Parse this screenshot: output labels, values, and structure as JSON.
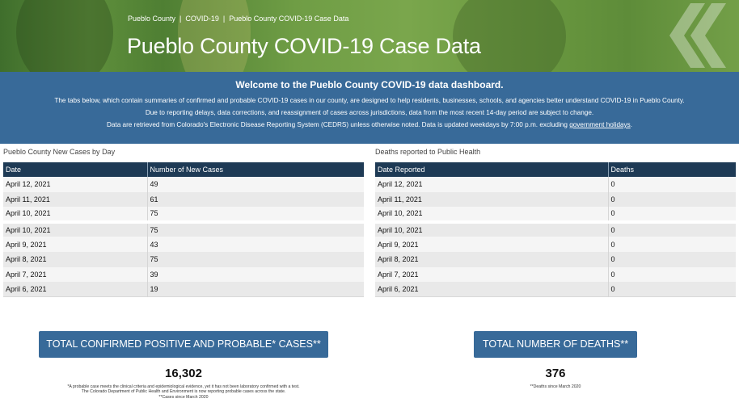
{
  "breadcrumb": [
    "Pueblo County",
    "COVID-19",
    "Pueblo County COVID-19 Case Data"
  ],
  "breadcrumb_separator": "|",
  "page_title": "Pueblo County COVID-19 Case Data",
  "banner": {
    "welcome": "Welcome to the Pueblo County COVID-19 data dashboard.",
    "line1": "The tabs below, which contain summaries of confirmed and probable COVID-19 cases in our county, are designed to help residents, businesses, schools, and agencies better understand COVID-19 in Pueblo County.",
    "line2": "Due to reporting delays, data corrections, and reassignment of cases across jurisdictions, data from the most recent 14-day period are subject to change.",
    "line3_prefix": "Data are retrieved from Colorado's Electronic Disease Reporting System (CEDRS) unless otherwise noted. Data is updated weekdays by 7:00 p.m. excluding ",
    "line3_link": "government holidays",
    "line3_suffix": "."
  },
  "cases_section": {
    "title": "Pueblo County New Cases by Day",
    "headers": [
      "Date",
      "Number of New Cases"
    ],
    "rows": [
      [
        "April 12, 2021",
        "49"
      ],
      [
        "April 11, 2021",
        "61"
      ],
      [
        "April 10, 2021",
        "75"
      ],
      [
        "April 10, 2021",
        "75"
      ],
      [
        "April 9, 2021",
        "43"
      ],
      [
        "April 8, 2021",
        "75"
      ],
      [
        "April 7, 2021",
        "39"
      ],
      [
        "April 6, 2021",
        "19"
      ]
    ]
  },
  "deaths_section": {
    "title": "Deaths reported to Public Health",
    "headers": [
      "Date Reported",
      "Deaths"
    ],
    "rows": [
      [
        "April 12, 2021",
        "0"
      ],
      [
        "April 11, 2021",
        "0"
      ],
      [
        "April 10, 2021",
        "0"
      ],
      [
        "April 10, 2021",
        "0"
      ],
      [
        "April 9, 2021",
        "0"
      ],
      [
        "April 8, 2021",
        "0"
      ],
      [
        "April 7, 2021",
        "0"
      ],
      [
        "April 6, 2021",
        "0"
      ]
    ]
  },
  "totals": {
    "cases_label": "TOTAL CONFIRMED POSITIVE AND PROBABLE* CASES**",
    "cases_value": "16,302",
    "cases_note1": "*A probable case meets the clinical criteria and epidemiological evidence, yet it has not been laboratory confirmed with a test.",
    "cases_note2": "The Colorado Department of Public Health and Environment is now reporting probable cases across the state.",
    "cases_note3": "**Cases since March 2020",
    "deaths_label": "TOTAL NUMBER OF DEATHS**",
    "deaths_value": "376",
    "deaths_note": "**Deaths since March 2020"
  },
  "colors": {
    "banner_blue": "#386a99",
    "table_header": "#1e3a55",
    "hero_green": "#5f8f3c"
  },
  "icons": [
    "chevron-right-icon"
  ]
}
